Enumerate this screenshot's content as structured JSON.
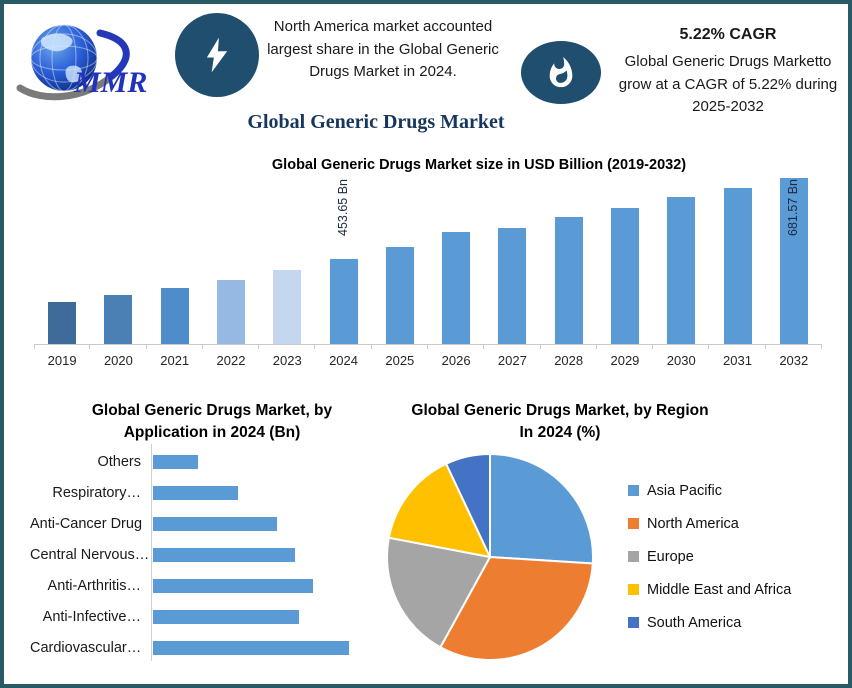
{
  "page": {
    "border_color": "#2a5a66",
    "background": "#ffffff"
  },
  "header": {
    "logo_text": "MMR",
    "highlight_note": "North America market accounted largest share in the Global Generic Drugs Market in 2024.",
    "main_title": "Global Generic Drugs Market",
    "cagr_heading": "5.22% CAGR",
    "cagr_note": "Global Generic Drugs Marketto grow at a CAGR of 5.22% during 2025-2032",
    "badge_color": "#1f4e6e",
    "icons": {
      "left_badge": "lightning-bolt",
      "right_badge": "flame",
      "logo": "globe-with-swoosh"
    }
  },
  "chart_data": [
    {
      "id": "annual",
      "type": "bar",
      "title": "Global Generic Drugs Market size in USD Billion (2019-2032)",
      "categories": [
        "2019",
        "2020",
        "2021",
        "2022",
        "2023",
        "2024",
        "2025",
        "2026",
        "2027",
        "2028",
        "2029",
        "2030",
        "2031",
        "2032"
      ],
      "values": [
        330,
        350,
        371,
        394,
        422,
        453.65,
        488,
        529,
        542,
        572,
        597,
        630,
        654,
        681.57
      ],
      "values_note": "only 2024 and 2032 carry data labels; remaining values estimated from bar heights",
      "data_labels": {
        "2024": "453.65 Bn",
        "2032": "681.57 Bn"
      },
      "bar_colors": [
        "#3e6b99",
        "#4a80b4",
        "#4e8ccc",
        "#96b9e4",
        "#c5d7ee",
        "#5b9bd5",
        "#5b9bd5",
        "#5b9bd5",
        "#5b9bd5",
        "#5b9bd5",
        "#5b9bd5",
        "#5b9bd5",
        "#5b9bd5",
        "#5b9bd5"
      ],
      "ylabel": "USD Billion",
      "ylim_estimated": [
        212,
        700
      ],
      "grid": false,
      "legend": false
    },
    {
      "id": "application",
      "type": "bar-horizontal",
      "title": "Global Generic Drugs Market, by Application in 2024 (Bn)",
      "categories": [
        "Others",
        "Respiratory…",
        "Anti-Cancer Drug",
        "Central Nervous…",
        "Anti-Arthritis…",
        "Anti-Infective…",
        "Cardiovascular…"
      ],
      "values": [
        45,
        85,
        124,
        142,
        160,
        146,
        196
      ],
      "values_note": "no value axis shown; values are relative bar lengths",
      "bar_color": "#5b9bd5",
      "grid": false,
      "legend": false
    },
    {
      "id": "region",
      "type": "pie",
      "title": "Global Generic Drugs Market, by Region In 2024 (%)",
      "slices": [
        {
          "label": "Asia Pacific",
          "value": 26,
          "color": "#5b9bd5"
        },
        {
          "label": "North America",
          "value": 32,
          "color": "#ed7d31"
        },
        {
          "label": "Europe",
          "value": 20,
          "color": "#a5a5a5"
        },
        {
          "label": "Middle East and Africa",
          "value": 15,
          "color": "#ffc000"
        },
        {
          "label": "South America",
          "value": 7,
          "color": "#4472c4"
        }
      ],
      "values_note": "percentages estimated from slice angles",
      "start_angle_deg": -90,
      "clockwise": true,
      "legend_position": "right"
    }
  ]
}
